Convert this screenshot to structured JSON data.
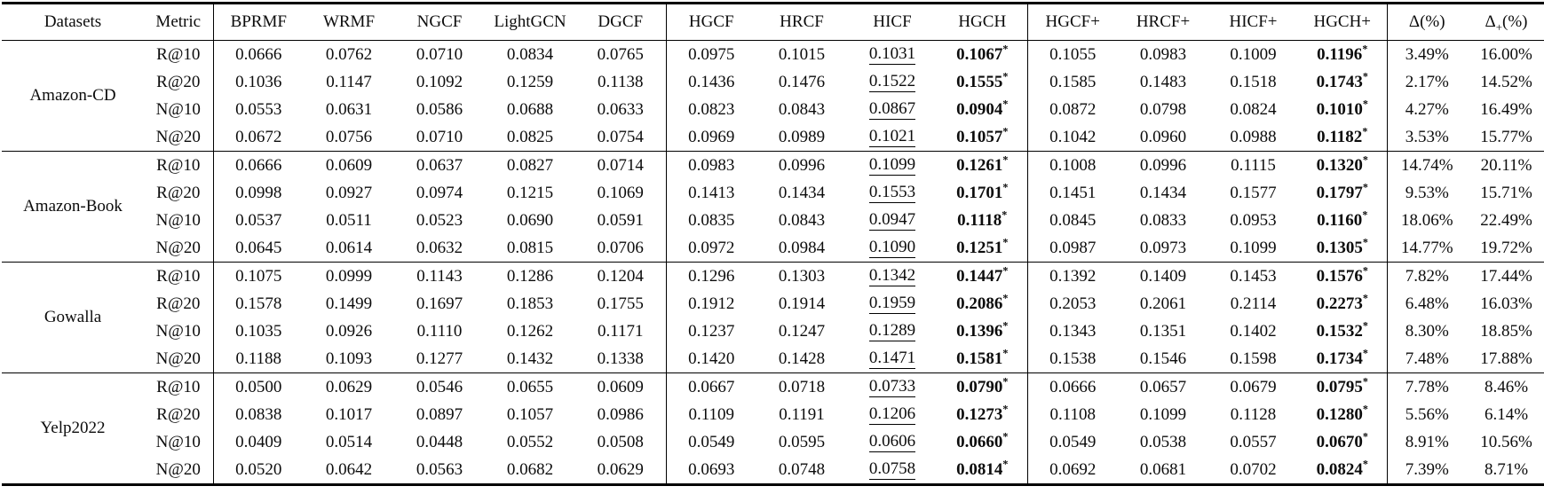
{
  "table": {
    "headers": {
      "datasets": "Datasets",
      "metric": "Metric",
      "models": [
        "BPRMF",
        "WRMF",
        "NGCF",
        "LightGCN",
        "DGCF",
        "HGCF",
        "HRCF",
        "HICF",
        "HGCH",
        "HGCF+",
        "HRCF+",
        "HICF+",
        "HGCH+"
      ],
      "delta": "Δ(%)",
      "delta_plus": {
        "base": "Δ",
        "sub": "+",
        "suffix": "(%)"
      }
    },
    "formatting": {
      "second_best_model": "HICF",
      "best_models_starred": [
        "HGCH",
        "HGCH+"
      ],
      "significance_marker": "*",
      "rule_color": "#000000",
      "text_color": "#0c0c0c"
    },
    "groups": [
      {
        "dataset": "Amazon-CD",
        "rows": [
          {
            "metric": "R@10",
            "values": [
              "0.0666",
              "0.0762",
              "0.0710",
              "0.0834",
              "0.0765",
              "0.0975",
              "0.1015",
              "0.1031",
              "0.1067",
              "0.1055",
              "0.0983",
              "0.1009",
              "0.1196"
            ],
            "delta": "3.49%",
            "delta_plus": "16.00%"
          },
          {
            "metric": "R@20",
            "values": [
              "0.1036",
              "0.1147",
              "0.1092",
              "0.1259",
              "0.1138",
              "0.1436",
              "0.1476",
              "0.1522",
              "0.1555",
              "0.1585",
              "0.1483",
              "0.1518",
              "0.1743"
            ],
            "delta": "2.17%",
            "delta_plus": "14.52%"
          },
          {
            "metric": "N@10",
            "values": [
              "0.0553",
              "0.0631",
              "0.0586",
              "0.0688",
              "0.0633",
              "0.0823",
              "0.0843",
              "0.0867",
              "0.0904",
              "0.0872",
              "0.0798",
              "0.0824",
              "0.1010"
            ],
            "delta": "4.27%",
            "delta_plus": "16.49%"
          },
          {
            "metric": "N@20",
            "values": [
              "0.0672",
              "0.0756",
              "0.0710",
              "0.0825",
              "0.0754",
              "0.0969",
              "0.0989",
              "0.1021",
              "0.1057",
              "0.1042",
              "0.0960",
              "0.0988",
              "0.1182"
            ],
            "delta": "3.53%",
            "delta_plus": "15.77%"
          }
        ]
      },
      {
        "dataset": "Amazon-Book",
        "rows": [
          {
            "metric": "R@10",
            "values": [
              "0.0666",
              "0.0609",
              "0.0637",
              "0.0827",
              "0.0714",
              "0.0983",
              "0.0996",
              "0.1099",
              "0.1261",
              "0.1008",
              "0.0996",
              "0.1115",
              "0.1320"
            ],
            "delta": "14.74%",
            "delta_plus": "20.11%"
          },
          {
            "metric": "R@20",
            "values": [
              "0.0998",
              "0.0927",
              "0.0974",
              "0.1215",
              "0.1069",
              "0.1413",
              "0.1434",
              "0.1553",
              "0.1701",
              "0.1451",
              "0.1434",
              "0.1577",
              "0.1797"
            ],
            "delta": "9.53%",
            "delta_plus": "15.71%"
          },
          {
            "metric": "N@10",
            "values": [
              "0.0537",
              "0.0511",
              "0.0523",
              "0.0690",
              "0.0591",
              "0.0835",
              "0.0843",
              "0.0947",
              "0.1118",
              "0.0845",
              "0.0833",
              "0.0953",
              "0.1160"
            ],
            "delta": "18.06%",
            "delta_plus": "22.49%"
          },
          {
            "metric": "N@20",
            "values": [
              "0.0645",
              "0.0614",
              "0.0632",
              "0.0815",
              "0.0706",
              "0.0972",
              "0.0984",
              "0.1090",
              "0.1251",
              "0.0987",
              "0.0973",
              "0.1099",
              "0.1305"
            ],
            "delta": "14.77%",
            "delta_plus": "19.72%"
          }
        ]
      },
      {
        "dataset": "Gowalla",
        "rows": [
          {
            "metric": "R@10",
            "values": [
              "0.1075",
              "0.0999",
              "0.1143",
              "0.1286",
              "0.1204",
              "0.1296",
              "0.1303",
              "0.1342",
              "0.1447",
              "0.1392",
              "0.1409",
              "0.1453",
              "0.1576"
            ],
            "delta": "7.82%",
            "delta_plus": "17.44%"
          },
          {
            "metric": "R@20",
            "values": [
              "0.1578",
              "0.1499",
              "0.1697",
              "0.1853",
              "0.1755",
              "0.1912",
              "0.1914",
              "0.1959",
              "0.2086",
              "0.2053",
              "0.2061",
              "0.2114",
              "0.2273"
            ],
            "delta": "6.48%",
            "delta_plus": "16.03%"
          },
          {
            "metric": "N@10",
            "values": [
              "0.1035",
              "0.0926",
              "0.1110",
              "0.1262",
              "0.1171",
              "0.1237",
              "0.1247",
              "0.1289",
              "0.1396",
              "0.1343",
              "0.1351",
              "0.1402",
              "0.1532"
            ],
            "delta": "8.30%",
            "delta_plus": "18.85%"
          },
          {
            "metric": "N@20",
            "values": [
              "0.1188",
              "0.1093",
              "0.1277",
              "0.1432",
              "0.1338",
              "0.1420",
              "0.1428",
              "0.1471",
              "0.1581",
              "0.1538",
              "0.1546",
              "0.1598",
              "0.1734"
            ],
            "delta": "7.48%",
            "delta_plus": "17.88%"
          }
        ]
      },
      {
        "dataset": "Yelp2022",
        "rows": [
          {
            "metric": "R@10",
            "values": [
              "0.0500",
              "0.0629",
              "0.0546",
              "0.0655",
              "0.0609",
              "0.0667",
              "0.0718",
              "0.0733",
              "0.0790",
              "0.0666",
              "0.0657",
              "0.0679",
              "0.0795"
            ],
            "delta": "7.78%",
            "delta_plus": "8.46%"
          },
          {
            "metric": "R@20",
            "values": [
              "0.0838",
              "0.1017",
              "0.0897",
              "0.1057",
              "0.0986",
              "0.1109",
              "0.1191",
              "0.1206",
              "0.1273",
              "0.1108",
              "0.1099",
              "0.1128",
              "0.1280"
            ],
            "delta": "5.56%",
            "delta_plus": "6.14%"
          },
          {
            "metric": "N@10",
            "values": [
              "0.0409",
              "0.0514",
              "0.0448",
              "0.0552",
              "0.0508",
              "0.0549",
              "0.0595",
              "0.0606",
              "0.0660",
              "0.0549",
              "0.0538",
              "0.0557",
              "0.0670"
            ],
            "delta": "8.91%",
            "delta_plus": "10.56%"
          },
          {
            "metric": "N@20",
            "values": [
              "0.0520",
              "0.0642",
              "0.0563",
              "0.0682",
              "0.0629",
              "0.0693",
              "0.0748",
              "0.0758",
              "0.0814",
              "0.0692",
              "0.0681",
              "0.0702",
              "0.0824"
            ],
            "delta": "7.39%",
            "delta_plus": "8.71%"
          }
        ]
      }
    ]
  }
}
